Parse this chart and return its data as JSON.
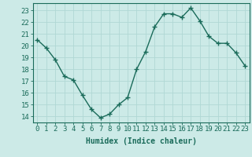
{
  "x": [
    0,
    1,
    2,
    3,
    4,
    5,
    6,
    7,
    8,
    9,
    10,
    11,
    12,
    13,
    14,
    15,
    16,
    17,
    18,
    19,
    20,
    21,
    22,
    23
  ],
  "y": [
    20.5,
    19.8,
    18.8,
    17.4,
    17.1,
    15.8,
    14.6,
    13.9,
    14.2,
    15.0,
    15.6,
    18.0,
    19.5,
    21.6,
    22.7,
    22.7,
    22.4,
    23.2,
    22.1,
    20.8,
    20.2,
    20.2,
    19.4,
    18.3
  ],
  "line_color": "#1a6b5a",
  "marker": "+",
  "markersize": 4,
  "linewidth": 1.0,
  "bg_color": "#cceae7",
  "grid_color": "#b0d8d4",
  "tick_color": "#1a6b5a",
  "xlabel": "Humidex (Indice chaleur)",
  "xlabel_fontsize": 7,
  "ylabel_ticks": [
    14,
    15,
    16,
    17,
    18,
    19,
    20,
    21,
    22,
    23
  ],
  "xlim": [
    -0.5,
    23.5
  ],
  "ylim": [
    13.5,
    23.6
  ],
  "tick_fontsize": 6.5
}
